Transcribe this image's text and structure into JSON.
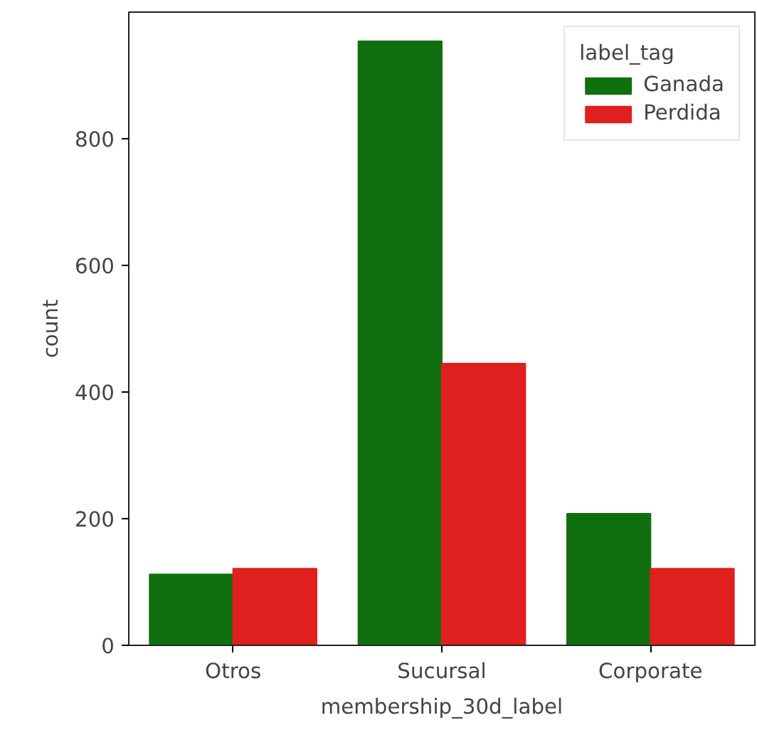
{
  "chart_data": {
    "type": "bar",
    "xlabel": "membership_30d_label",
    "ylabel": "count",
    "legend_title": "label_tag",
    "categories": [
      "Otros",
      "Sucursal",
      "Corporate"
    ],
    "series": [
      {
        "name": "Ganada",
        "color": "#107010",
        "values": [
          112,
          954,
          208
        ]
      },
      {
        "name": "Perdida",
        "color": "#e01f1f",
        "values": [
          121,
          445,
          121
        ]
      }
    ],
    "ylim": [
      0,
      1000
    ],
    "yticks": [
      0,
      200,
      400,
      600,
      800
    ],
    "grid": false,
    "legend": "top right"
  }
}
